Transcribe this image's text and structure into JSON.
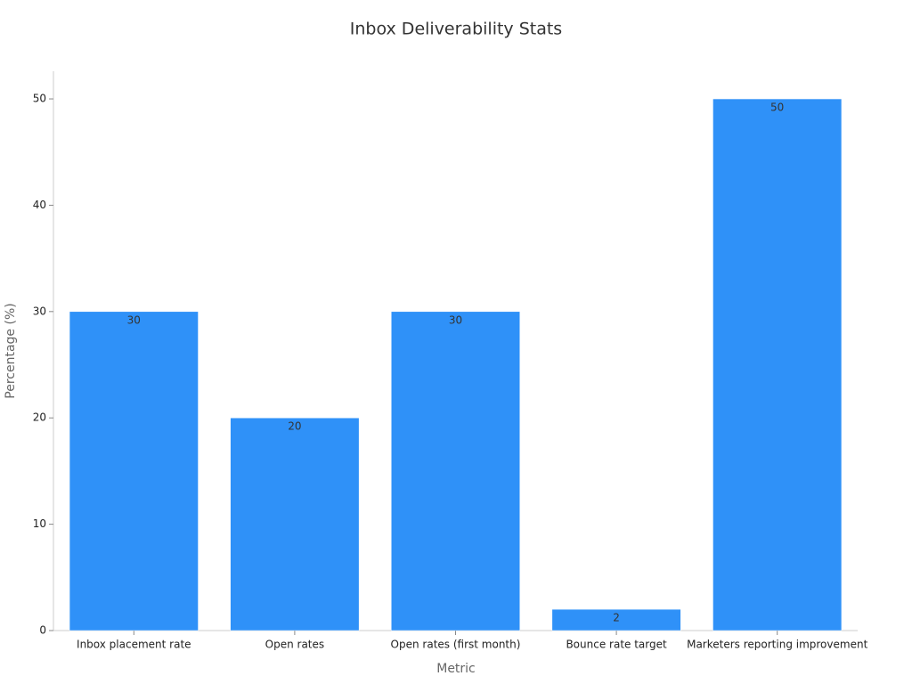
{
  "chart_data": {
    "type": "bar",
    "title": "Inbox Deliverability Stats",
    "x_label": "Metric",
    "y_label": "Percentage (%)",
    "categories": [
      "Inbox placement rate",
      "Open rates",
      "Open rates (first month)",
      "Bounce rate target",
      "Marketers reporting improvement"
    ],
    "values": [
      30,
      20,
      30,
      2,
      50
    ],
    "color": "#2f91f8",
    "ylim": [
      0,
      52.6
    ],
    "yticks": [
      0,
      10,
      20,
      30,
      40,
      50
    ],
    "grid": false
  }
}
